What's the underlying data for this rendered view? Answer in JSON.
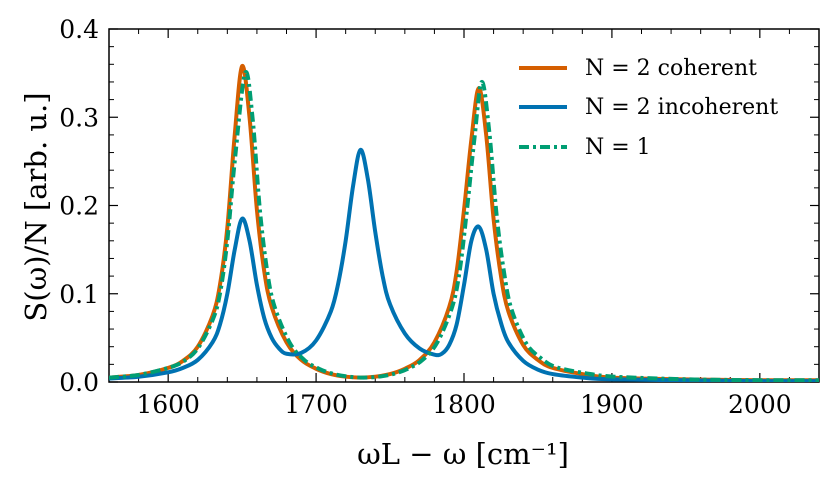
{
  "chart_data": {
    "type": "line",
    "xlabel": "ωL − ω [cm⁻¹]",
    "ylabel": "S(ω)/N [arb. u.]",
    "xlim": [
      1560,
      2040
    ],
    "ylim": [
      0,
      0.4
    ],
    "xticks": [
      1600,
      1700,
      1800,
      1900,
      2000
    ],
    "yticks": [
      0.0,
      0.1,
      0.2,
      0.3,
      0.4
    ],
    "xtick_labels": [
      "1600",
      "1700",
      "1800",
      "1900",
      "2000"
    ],
    "ytick_labels": [
      "0.0",
      "0.1",
      "0.2",
      "0.3",
      "0.4"
    ],
    "grid": false,
    "legend_position": "top-right",
    "series": [
      {
        "name": "N = 2 coherent",
        "color": "#d55e00",
        "style": "solid",
        "x": [
          1560,
          1580,
          1600,
          1610,
          1620,
          1630,
          1635,
          1640,
          1645,
          1650,
          1655,
          1660,
          1665,
          1670,
          1680,
          1690,
          1700,
          1710,
          1720,
          1730,
          1740,
          1750,
          1760,
          1770,
          1780,
          1790,
          1795,
          1800,
          1805,
          1810,
          1815,
          1820,
          1825,
          1830,
          1840,
          1850,
          1860,
          1880,
          1900,
          1950,
          2000,
          2040
        ],
        "y": [
          0.005,
          0.008,
          0.016,
          0.024,
          0.04,
          0.075,
          0.11,
          0.175,
          0.28,
          0.358,
          0.3,
          0.195,
          0.125,
          0.085,
          0.045,
          0.025,
          0.015,
          0.009,
          0.006,
          0.005,
          0.006,
          0.009,
          0.015,
          0.025,
          0.045,
          0.085,
          0.125,
          0.195,
          0.275,
          0.333,
          0.28,
          0.185,
          0.12,
          0.08,
          0.042,
          0.025,
          0.016,
          0.009,
          0.005,
          0.003,
          0.002,
          0.002
        ]
      },
      {
        "name": "N = 2 incoherent",
        "color": "#0072b2",
        "style": "solid",
        "x": [
          1560,
          1580,
          1600,
          1610,
          1620,
          1630,
          1635,
          1640,
          1645,
          1650,
          1655,
          1660,
          1665,
          1670,
          1675,
          1680,
          1690,
          1700,
          1710,
          1715,
          1720,
          1725,
          1730,
          1735,
          1740,
          1745,
          1750,
          1760,
          1770,
          1780,
          1785,
          1790,
          1795,
          1800,
          1805,
          1810,
          1815,
          1820,
          1825,
          1830,
          1840,
          1850,
          1860,
          1880,
          1900,
          1950,
          2000,
          2040
        ],
        "y": [
          0.004,
          0.006,
          0.011,
          0.016,
          0.025,
          0.045,
          0.065,
          0.1,
          0.15,
          0.185,
          0.16,
          0.11,
          0.072,
          0.05,
          0.038,
          0.032,
          0.033,
          0.047,
          0.08,
          0.112,
          0.16,
          0.222,
          0.263,
          0.23,
          0.17,
          0.12,
          0.088,
          0.055,
          0.038,
          0.031,
          0.032,
          0.042,
          0.065,
          0.11,
          0.16,
          0.176,
          0.15,
          0.1,
          0.067,
          0.045,
          0.024,
          0.014,
          0.009,
          0.005,
          0.003,
          0.002,
          0.001,
          0.001
        ]
      },
      {
        "name": "N = 1",
        "color": "#009e73",
        "style": "dashdot",
        "x": [
          1560,
          1580,
          1600,
          1610,
          1620,
          1630,
          1635,
          1640,
          1645,
          1652,
          1657,
          1662,
          1667,
          1672,
          1682,
          1692,
          1702,
          1712,
          1722,
          1732,
          1742,
          1752,
          1762,
          1772,
          1782,
          1792,
          1797,
          1802,
          1807,
          1812,
          1817,
          1822,
          1827,
          1832,
          1842,
          1852,
          1862,
          1882,
          1902,
          1952,
          2002,
          2040
        ],
        "y": [
          0.005,
          0.008,
          0.016,
          0.023,
          0.038,
          0.07,
          0.1,
          0.16,
          0.25,
          0.35,
          0.3,
          0.195,
          0.125,
          0.085,
          0.045,
          0.025,
          0.015,
          0.009,
          0.006,
          0.005,
          0.006,
          0.009,
          0.015,
          0.025,
          0.045,
          0.085,
          0.125,
          0.195,
          0.275,
          0.34,
          0.285,
          0.19,
          0.125,
          0.083,
          0.044,
          0.027,
          0.017,
          0.01,
          0.006,
          0.003,
          0.002,
          0.002
        ]
      }
    ]
  }
}
